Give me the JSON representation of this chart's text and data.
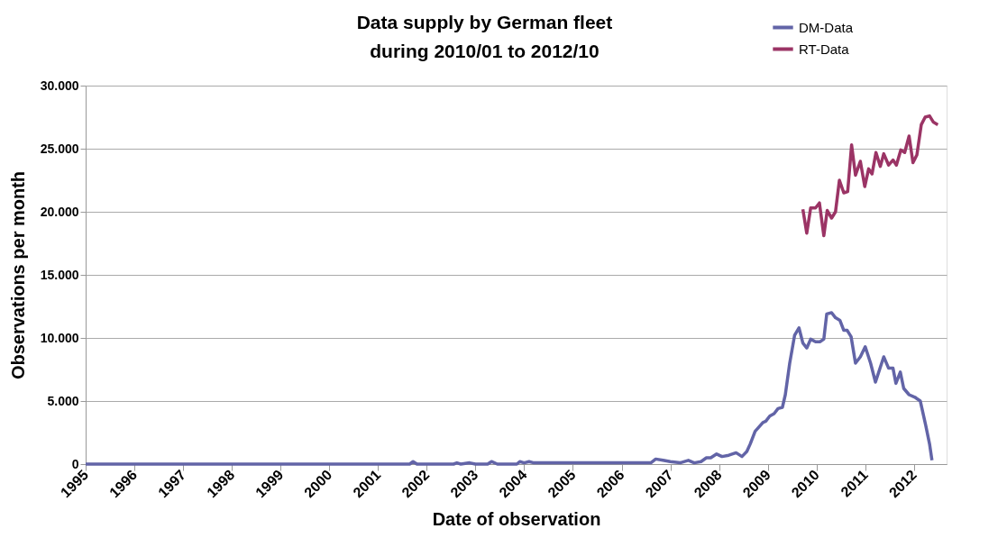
{
  "chart_data": {
    "type": "line",
    "title": "Data supply by German fleet\nduring 2010/01 to 2012/10",
    "xlabel": "Date of observation",
    "ylabel": "Observations per month",
    "xlim": [
      1995,
      2012.67
    ],
    "xticks": [
      1995,
      1996,
      1997,
      1998,
      1999,
      2000,
      2001,
      2002,
      2003,
      2004,
      2005,
      2006,
      2007,
      2008,
      2009,
      2010,
      2011,
      2012
    ],
    "ylim": [
      0,
      30000
    ],
    "yticks": [
      {
        "value": 0,
        "label": "0"
      },
      {
        "value": 5000,
        "label": "5.000"
      },
      {
        "value": 10000,
        "label": "10.000"
      },
      {
        "value": 15000,
        "label": "15.000"
      },
      {
        "value": 20000,
        "label": "20.000"
      },
      {
        "value": 25000,
        "label": "25.000"
      },
      {
        "value": 30000,
        "label": "30.000"
      }
    ],
    "grid": "y",
    "legend": "top right",
    "marker": "none",
    "line_style": "solid",
    "series": [
      {
        "name": "DM-Data",
        "color": "#6264a7",
        "x": [
          1995.0,
          1996.0,
          1997.0,
          1998.0,
          1999.0,
          2000.0,
          2001.0,
          2001.65,
          2001.72,
          2001.8,
          2002.55,
          2002.62,
          2002.7,
          2002.88,
          2003.0,
          2003.25,
          2003.33,
          2003.45,
          2003.85,
          2003.91,
          2004.0,
          2004.1,
          2004.2,
          2005.0,
          2006.0,
          2006.6,
          2006.7,
          2006.85,
          2007.0,
          2007.2,
          2007.37,
          2007.49,
          2007.63,
          2007.74,
          2007.83,
          2007.95,
          2008.06,
          2008.2,
          2008.35,
          2008.47,
          2008.57,
          2008.64,
          2008.74,
          2008.81,
          2008.9,
          2008.96,
          2009.04,
          2009.13,
          2009.21,
          2009.3,
          2009.36,
          2009.45,
          2009.55,
          2009.64,
          2009.72,
          2009.8,
          2009.88,
          2009.98,
          2010.07,
          2010.15,
          2010.21,
          2010.31,
          2010.39,
          2010.48,
          2010.56,
          2010.63,
          2010.71,
          2010.8,
          2010.9,
          2011.0,
          2011.11,
          2011.21,
          2011.38,
          2011.48,
          2011.57,
          2011.63,
          2011.72,
          2011.79,
          2011.9,
          2012.02,
          2012.13,
          2012.24,
          2012.32,
          2012.37
        ],
        "values": [
          0,
          0,
          0,
          0,
          0,
          0,
          0,
          0,
          200,
          0,
          0,
          100,
          0,
          100,
          0,
          0,
          200,
          0,
          0,
          200,
          100,
          200,
          100,
          100,
          100,
          100,
          400,
          300,
          200,
          100,
          300,
          100,
          200,
          500,
          500,
          800,
          600,
          700,
          900,
          600,
          1000,
          1600,
          2600,
          2900,
          3300,
          3400,
          3800,
          4000,
          4400,
          4500,
          5500,
          8000,
          10200,
          10800,
          9600,
          9200,
          9900,
          9700,
          9700,
          9900,
          11900,
          12000,
          11600,
          11400,
          10600,
          10600,
          10100,
          8000,
          8500,
          9300,
          8000,
          6500,
          8500,
          7600,
          7600,
          6400,
          7300,
          6000,
          5500,
          5300,
          5000,
          3100,
          1600,
          300
        ]
      },
      {
        "name": "RT-Data",
        "color": "#9b3465",
        "x": [
          2009.72,
          2009.8,
          2009.88,
          2009.98,
          2010.06,
          2010.15,
          2010.22,
          2010.31,
          2010.39,
          2010.47,
          2010.56,
          2010.64,
          2010.72,
          2010.8,
          2010.9,
          2010.99,
          2011.07,
          2011.14,
          2011.22,
          2011.31,
          2011.38,
          2011.48,
          2011.57,
          2011.64,
          2011.73,
          2011.81,
          2011.9,
          2011.98,
          2012.06,
          2012.15,
          2012.23,
          2012.32,
          2012.4,
          2012.49
        ],
        "values": [
          20200,
          18300,
          20300,
          20300,
          20700,
          18100,
          20100,
          19500,
          20000,
          22500,
          21500,
          21600,
          25300,
          22900,
          24000,
          22000,
          23400,
          23000,
          24700,
          23600,
          24600,
          23700,
          24100,
          23700,
          24900,
          24700,
          26000,
          23900,
          24500,
          26900,
          27500,
          27600,
          27100,
          26900
        ]
      }
    ]
  }
}
